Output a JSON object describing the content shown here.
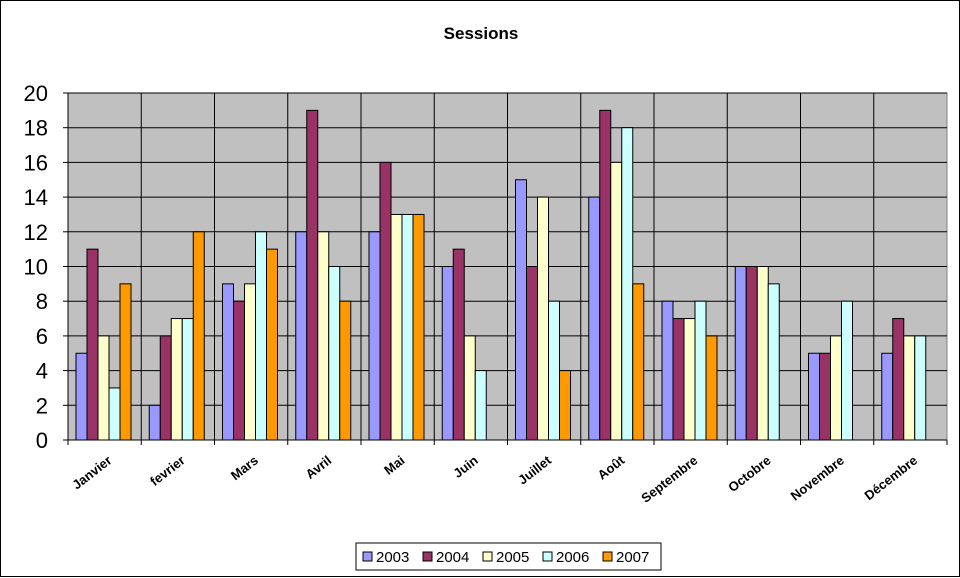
{
  "chart_data": {
    "type": "bar",
    "title": "Sessions",
    "xlabel": "",
    "ylabel": "",
    "categories": [
      "Janvier",
      "fevrier",
      "Mars",
      "Avril",
      "Mai",
      "Juin",
      "Juillet",
      "Août",
      "Septembre",
      "Octobre",
      "Novembre",
      "Décembre"
    ],
    "ylim": [
      0,
      20
    ],
    "yticks": [
      0,
      2,
      4,
      6,
      8,
      10,
      12,
      14,
      16,
      18,
      20
    ],
    "grid": true,
    "legend_position": "bottom",
    "series": [
      {
        "name": "2003",
        "color": "#9999ff",
        "values": [
          5,
          2,
          9,
          12,
          12,
          10,
          15,
          14,
          8,
          10,
          5,
          5
        ]
      },
      {
        "name": "2004",
        "color": "#993366",
        "values": [
          11,
          6,
          8,
          19,
          16,
          11,
          10,
          19,
          7,
          10,
          5,
          7
        ]
      },
      {
        "name": "2005",
        "color": "#ffffcc",
        "values": [
          6,
          7,
          9,
          12,
          13,
          6,
          14,
          16,
          7,
          10,
          6,
          6
        ]
      },
      {
        "name": "2006",
        "color": "#ccffff",
        "values": [
          3,
          7,
          12,
          10,
          13,
          4,
          8,
          18,
          8,
          9,
          8,
          6
        ]
      },
      {
        "name": "2007",
        "color": "#ff9900",
        "values": [
          9,
          12,
          11,
          8,
          13,
          null,
          4,
          9,
          6,
          null,
          null,
          null
        ]
      }
    ],
    "plot_background": "#c0c0c0"
  }
}
